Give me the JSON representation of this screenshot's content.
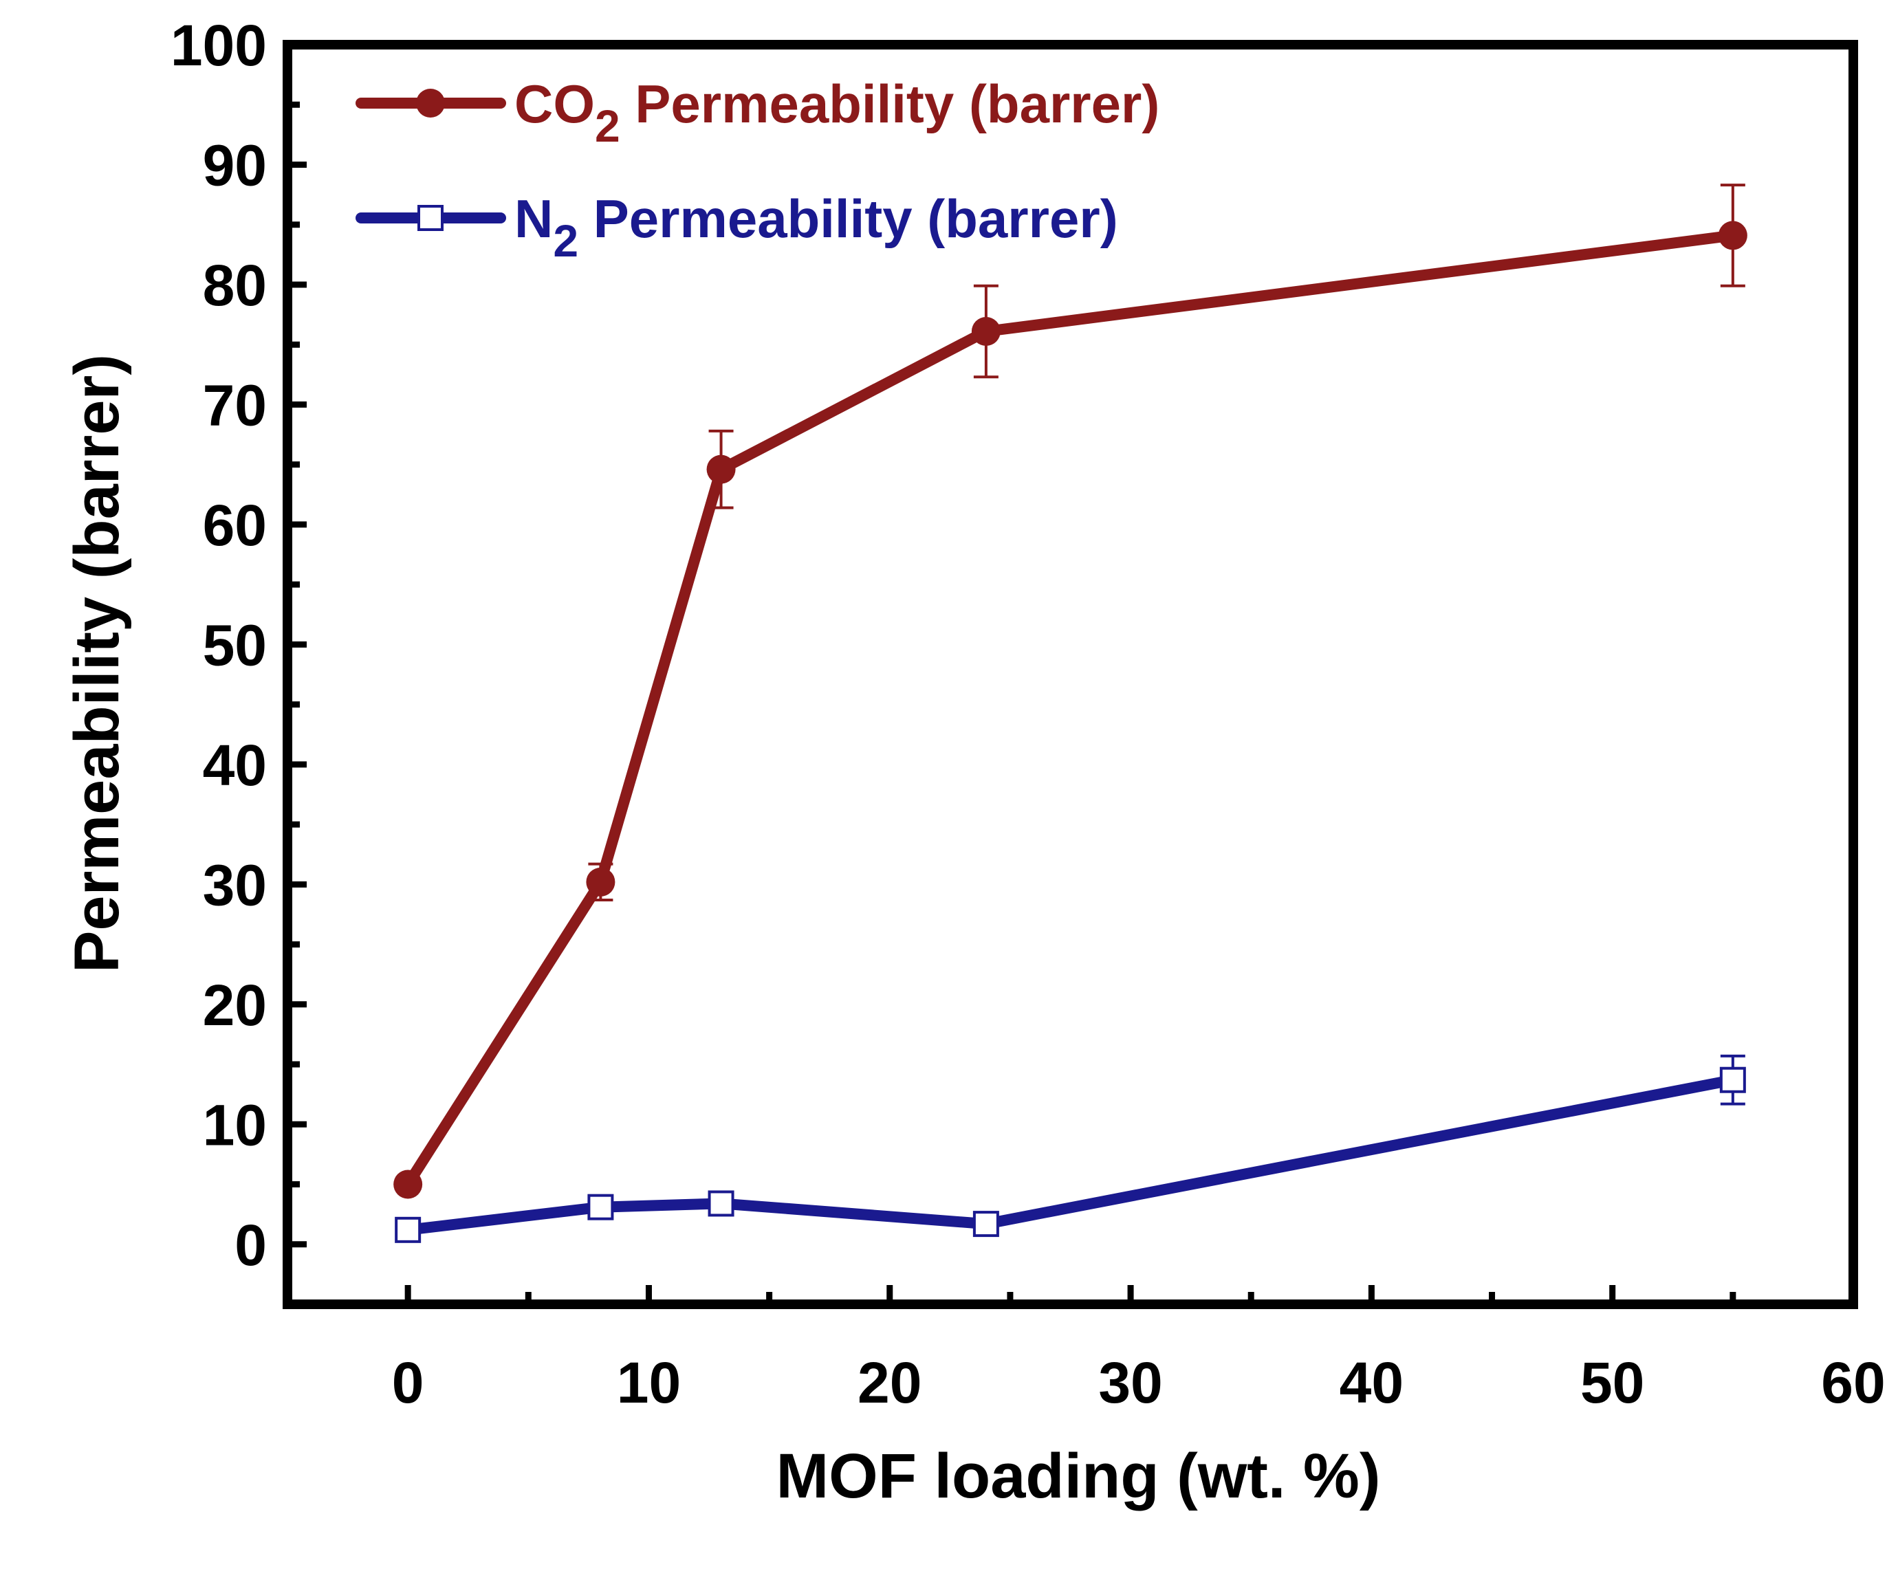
{
  "chart_data": {
    "type": "line",
    "xlabel": "MOF loading (wt. %)",
    "ylabel": "Permeability (barrer)",
    "xlim": [
      -5,
      60
    ],
    "ylim": [
      -5,
      100
    ],
    "xticks": [
      0,
      10,
      20,
      30,
      40,
      50,
      60
    ],
    "yticks": [
      0,
      10,
      20,
      30,
      40,
      50,
      60,
      70,
      80,
      90,
      100
    ],
    "legend_position": "top-left",
    "series": [
      {
        "name": "CO2 Permeability (barrer)",
        "legend_main": "CO",
        "legend_sub": "2",
        "legend_rest": " Permeability (barrer)",
        "color": "#8b1a1a",
        "marker": "filled-circle",
        "x": [
          0,
          8,
          13,
          24,
          55
        ],
        "y": [
          5,
          30.2,
          64.6,
          76.1,
          84.1
        ],
        "err": [
          0,
          1.5,
          3.2,
          3.8,
          4.2
        ]
      },
      {
        "name": "N2 Permeability (barrer)",
        "legend_main": "N",
        "legend_sub": "2",
        "legend_rest": " Permeability (barrer)",
        "color": "#1a1a8f",
        "marker": "open-square",
        "x": [
          0,
          8,
          13,
          24,
          55
        ],
        "y": [
          1.2,
          3.1,
          3.4,
          1.7,
          13.7
        ],
        "err": [
          0.6,
          0.6,
          0.6,
          0.6,
          2.0
        ]
      }
    ]
  }
}
